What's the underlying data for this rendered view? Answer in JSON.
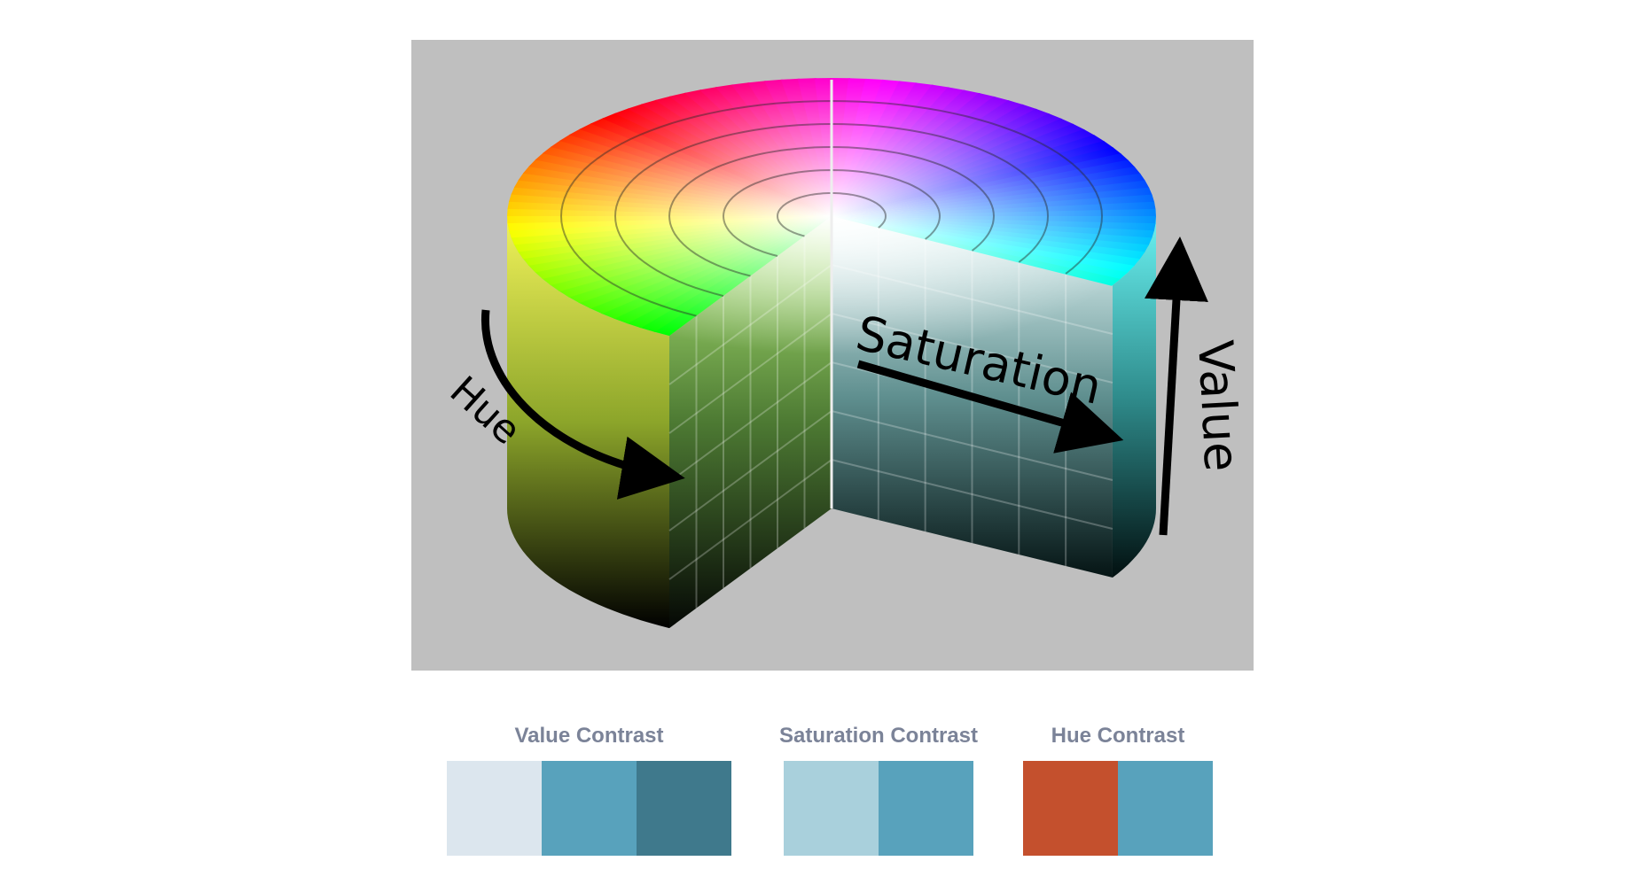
{
  "illustration": {
    "labels": {
      "hue": "Hue",
      "saturation": "Saturation",
      "value": "Value"
    }
  },
  "swatches": [
    {
      "title": "Value Contrast",
      "colors": [
        "#dce6ee",
        "#58a2bc",
        "#3f798c"
      ]
    },
    {
      "title": "Saturation Contrast",
      "colors": [
        "#a9d0dc",
        "#58a2bc"
      ]
    },
    {
      "title": "Hue Contrast",
      "colors": [
        "#c4502d",
        "#58a2bc"
      ]
    }
  ]
}
